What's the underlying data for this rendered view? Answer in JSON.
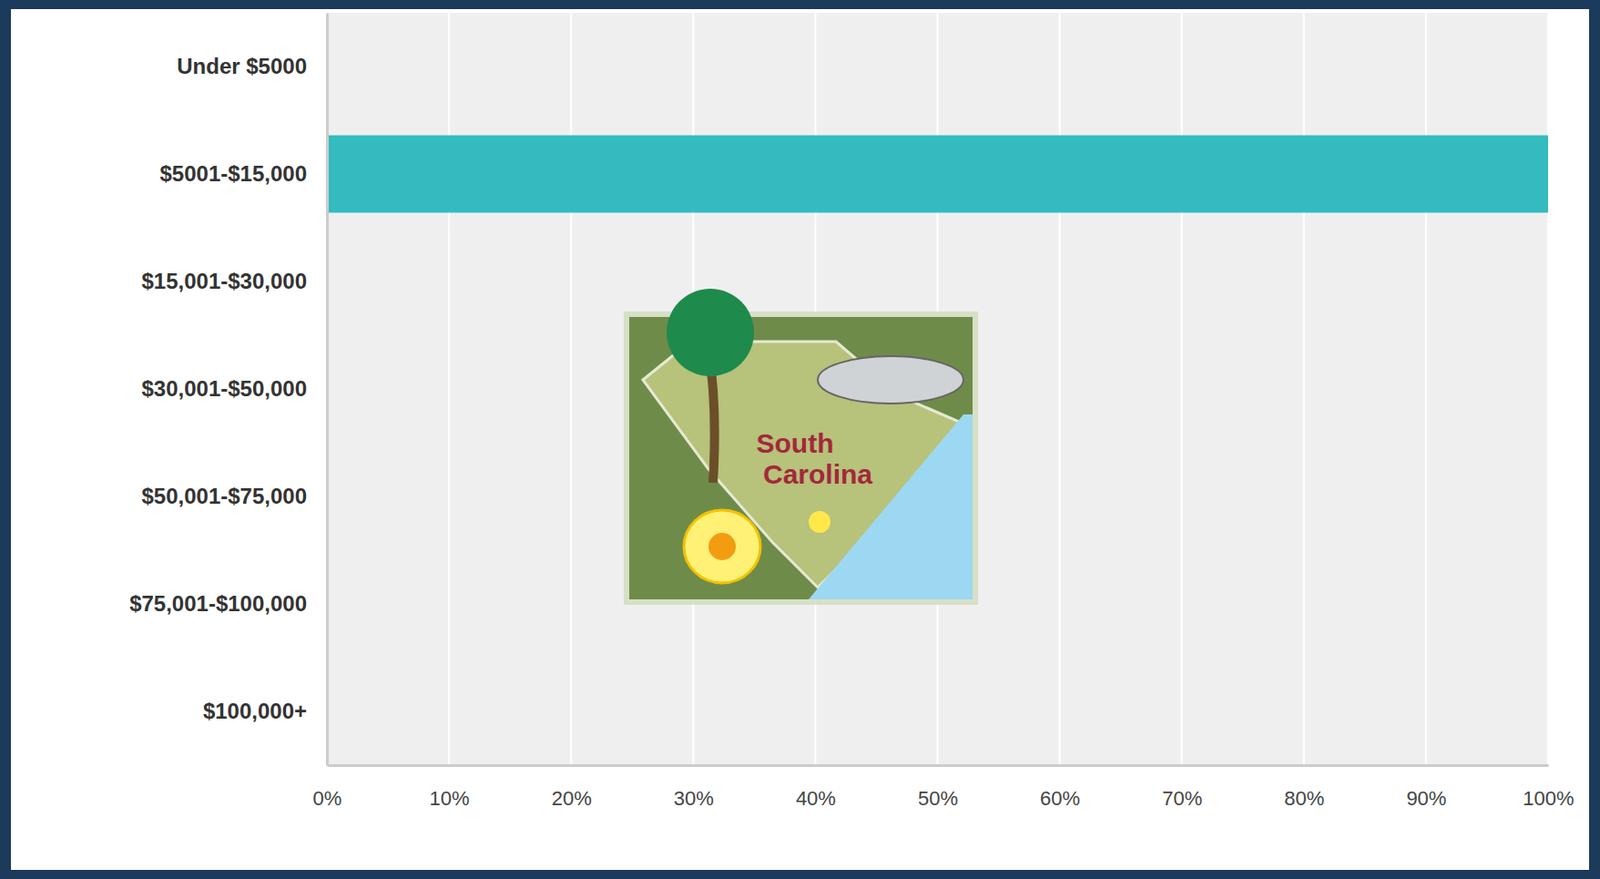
{
  "chart_data": {
    "type": "bar",
    "orientation": "horizontal",
    "categories": [
      "Under $5000",
      "$5001-$15,000",
      "$15,001-$30,000",
      "$30,001-$50,000",
      "$50,001-$75,000",
      "$75,001-$100,000",
      "$100,000+"
    ],
    "values": [
      0,
      100,
      0,
      0,
      0,
      0,
      0
    ],
    "color": "#33bbbf",
    "xlim": [
      0,
      100
    ],
    "xticks": [
      {
        "value": 0,
        "label": "0%"
      },
      {
        "value": 10,
        "label": "10%"
      },
      {
        "value": 20,
        "label": "20%"
      },
      {
        "value": 30,
        "label": "30%"
      },
      {
        "value": 40,
        "label": "40%"
      },
      {
        "value": 50,
        "label": "50%"
      },
      {
        "value": 60,
        "label": "60%"
      },
      {
        "value": 70,
        "label": "70%"
      },
      {
        "value": 80,
        "label": "80%"
      },
      {
        "value": 90,
        "label": "90%"
      },
      {
        "value": 100,
        "label": "100%"
      }
    ],
    "grid": true,
    "annotations": [
      "South Carolina"
    ]
  }
}
